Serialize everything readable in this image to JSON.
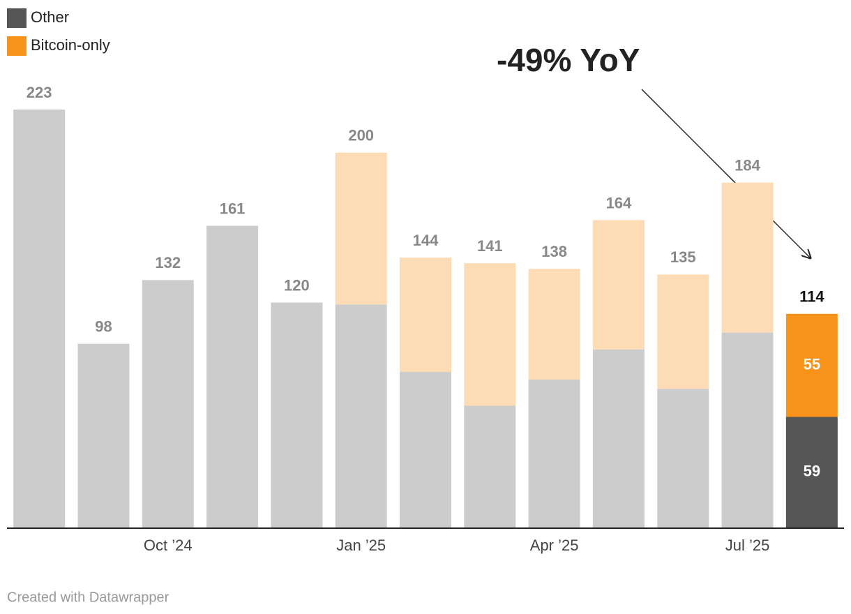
{
  "chart_data": {
    "type": "stacked_bar",
    "categories": [
      null,
      null,
      "Oct ’24",
      null,
      null,
      "Jan ’25",
      null,
      null,
      "Apr ’25",
      null,
      null,
      "Jul ’25",
      null
    ],
    "series": [
      {
        "name": "Other",
        "color": "#555555",
        "colors": [
          "#cccccc",
          "#cccccc",
          "#cccccc",
          "#cccccc",
          "#cccccc",
          "#cccccc",
          "#cccccc",
          "#cccccc",
          "#cccccc",
          "#cccccc",
          "#cccccc",
          "#cccccc",
          "#555555"
        ],
        "values": [
          223,
          98,
          132,
          161,
          120,
          119,
          83,
          65,
          79,
          95,
          74,
          104,
          59
        ]
      },
      {
        "name": "Bitcoin-only",
        "color": "#f7931a",
        "colors": [
          "#fddcb5",
          "#fddcb5",
          "#fddcb5",
          "#fddcb5",
          "#fddcb5",
          "#fddcb5",
          "#fddcb5",
          "#fddcb5",
          "#fddcb5",
          "#fddcb5",
          "#fddcb5",
          "#fddcb5",
          "#f7931a"
        ],
        "values": [
          null,
          null,
          null,
          null,
          null,
          81,
          61,
          76,
          59,
          69,
          61,
          80,
          55
        ]
      }
    ],
    "totals": [
      223,
      98,
      132,
      161,
      120,
      200,
      144,
      141,
      138,
      164,
      135,
      184,
      114
    ],
    "ylim": [
      0,
      223
    ],
    "annotation": "-49% YoY",
    "source": "Created with Datawrapper"
  }
}
